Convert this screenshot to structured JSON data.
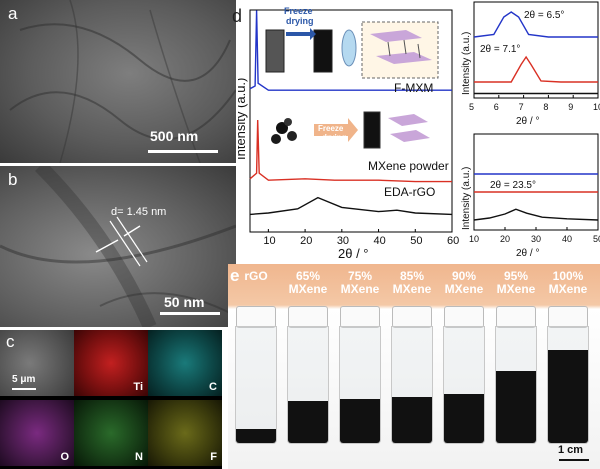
{
  "panel_a": {
    "label": "a",
    "scale": "500 nm"
  },
  "panel_b": {
    "label": "b",
    "scale": "50 nm",
    "d_spacing": "d= 1.45 nm"
  },
  "panel_c": {
    "label": "c",
    "scale": "5 μm",
    "elements": [
      "Ti",
      "C",
      "O",
      "N",
      "F"
    ]
  },
  "panel_d": {
    "label": "d",
    "freeze_top": [
      "Freeze",
      "drying"
    ],
    "freeze_mid": [
      "Freeze",
      "drying"
    ],
    "colors": {
      "fmxm": "#2335c8",
      "mxene": "#d93024",
      "rgo": "#111111"
    }
  },
  "panel_e": {
    "label": "e",
    "vials": [
      "rGO",
      "65%|MXene",
      "75%|MXene",
      "85%|MXene",
      "90%|MXene",
      "95%|MXene",
      "100%|MXene"
    ],
    "scale": "1 cm"
  },
  "chart_data": [
    {
      "type": "line",
      "xlabel": "2θ / °",
      "ylabel": "Intensity (a.u.)",
      "xlim": [
        5,
        60
      ],
      "x_ticks": [
        "10",
        "20",
        "30",
        "40",
        "50",
        "60"
      ],
      "series": [
        {
          "name": "F-MXM",
          "x": [
            5,
            6.4,
            6.8,
            7.2,
            10,
            20,
            30,
            40,
            50,
            60
          ],
          "y": [
            0.4,
            0.5,
            3.2,
            0.6,
            0.35,
            0.35,
            0.35,
            0.35,
            0.35,
            0.35
          ]
        },
        {
          "name": "MXene powder",
          "x": [
            5,
            6.8,
            7.1,
            7.5,
            10,
            20,
            28,
            40,
            50,
            60
          ],
          "y": [
            0.4,
            0.6,
            2.5,
            0.6,
            0.35,
            0.4,
            0.35,
            0.35,
            0.3,
            0.3
          ]
        },
        {
          "name": "EDA-rGO",
          "x": [
            5,
            10,
            18,
            23.5,
            30,
            40,
            45,
            50,
            60
          ],
          "y": [
            0.2,
            0.25,
            0.4,
            0.8,
            0.45,
            0.3,
            0.35,
            0.25,
            0.2
          ]
        }
      ]
    },
    {
      "type": "line",
      "xlabel": "2θ / °",
      "ylabel": "Intensity (a.u.)",
      "xlim": [
        5,
        10
      ],
      "x_ticks": [
        "5",
        "6",
        "7",
        "8",
        "9",
        "10"
      ],
      "annotations": [
        "2θ = 6.5°",
        "2θ = 7.1°"
      ],
      "series": [
        {
          "name": "F-MXM",
          "x": [
            5,
            5.8,
            6.2,
            6.5,
            6.8,
            7.2,
            8,
            10
          ],
          "y": [
            0.5,
            0.55,
            0.9,
            1.0,
            0.9,
            0.55,
            0.5,
            0.5
          ]
        },
        {
          "name": "MXene powder",
          "x": [
            5,
            6.5,
            6.9,
            7.1,
            7.3,
            7.7,
            8.5,
            10
          ],
          "y": [
            0.2,
            0.2,
            0.55,
            0.7,
            0.55,
            0.22,
            0.2,
            0.2
          ]
        },
        {
          "name": "EDA-rGO",
          "x": [
            5,
            7,
            10
          ],
          "y": [
            0.05,
            0.05,
            0.05
          ]
        }
      ]
    },
    {
      "type": "line",
      "xlabel": "2θ / °",
      "ylabel": "Intensity (a.u.)",
      "xlim": [
        10,
        50
      ],
      "x_ticks": [
        "10",
        "20",
        "30",
        "40",
        "50"
      ],
      "annotations": [
        "2θ = 23.5°"
      ],
      "series": [
        {
          "name": "F-MXM",
          "x": [
            10,
            20,
            30,
            40,
            50
          ],
          "y": [
            0.8,
            0.8,
            0.8,
            0.8,
            0.8
          ]
        },
        {
          "name": "MXene powder",
          "x": [
            10,
            20,
            30,
            40,
            50
          ],
          "y": [
            0.6,
            0.6,
            0.6,
            0.6,
            0.6
          ]
        },
        {
          "name": "EDA-rGO",
          "x": [
            10,
            15,
            20,
            23.5,
            27,
            32,
            40,
            50
          ],
          "y": [
            0.15,
            0.2,
            0.3,
            0.42,
            0.32,
            0.22,
            0.18,
            0.15
          ]
        }
      ]
    }
  ]
}
